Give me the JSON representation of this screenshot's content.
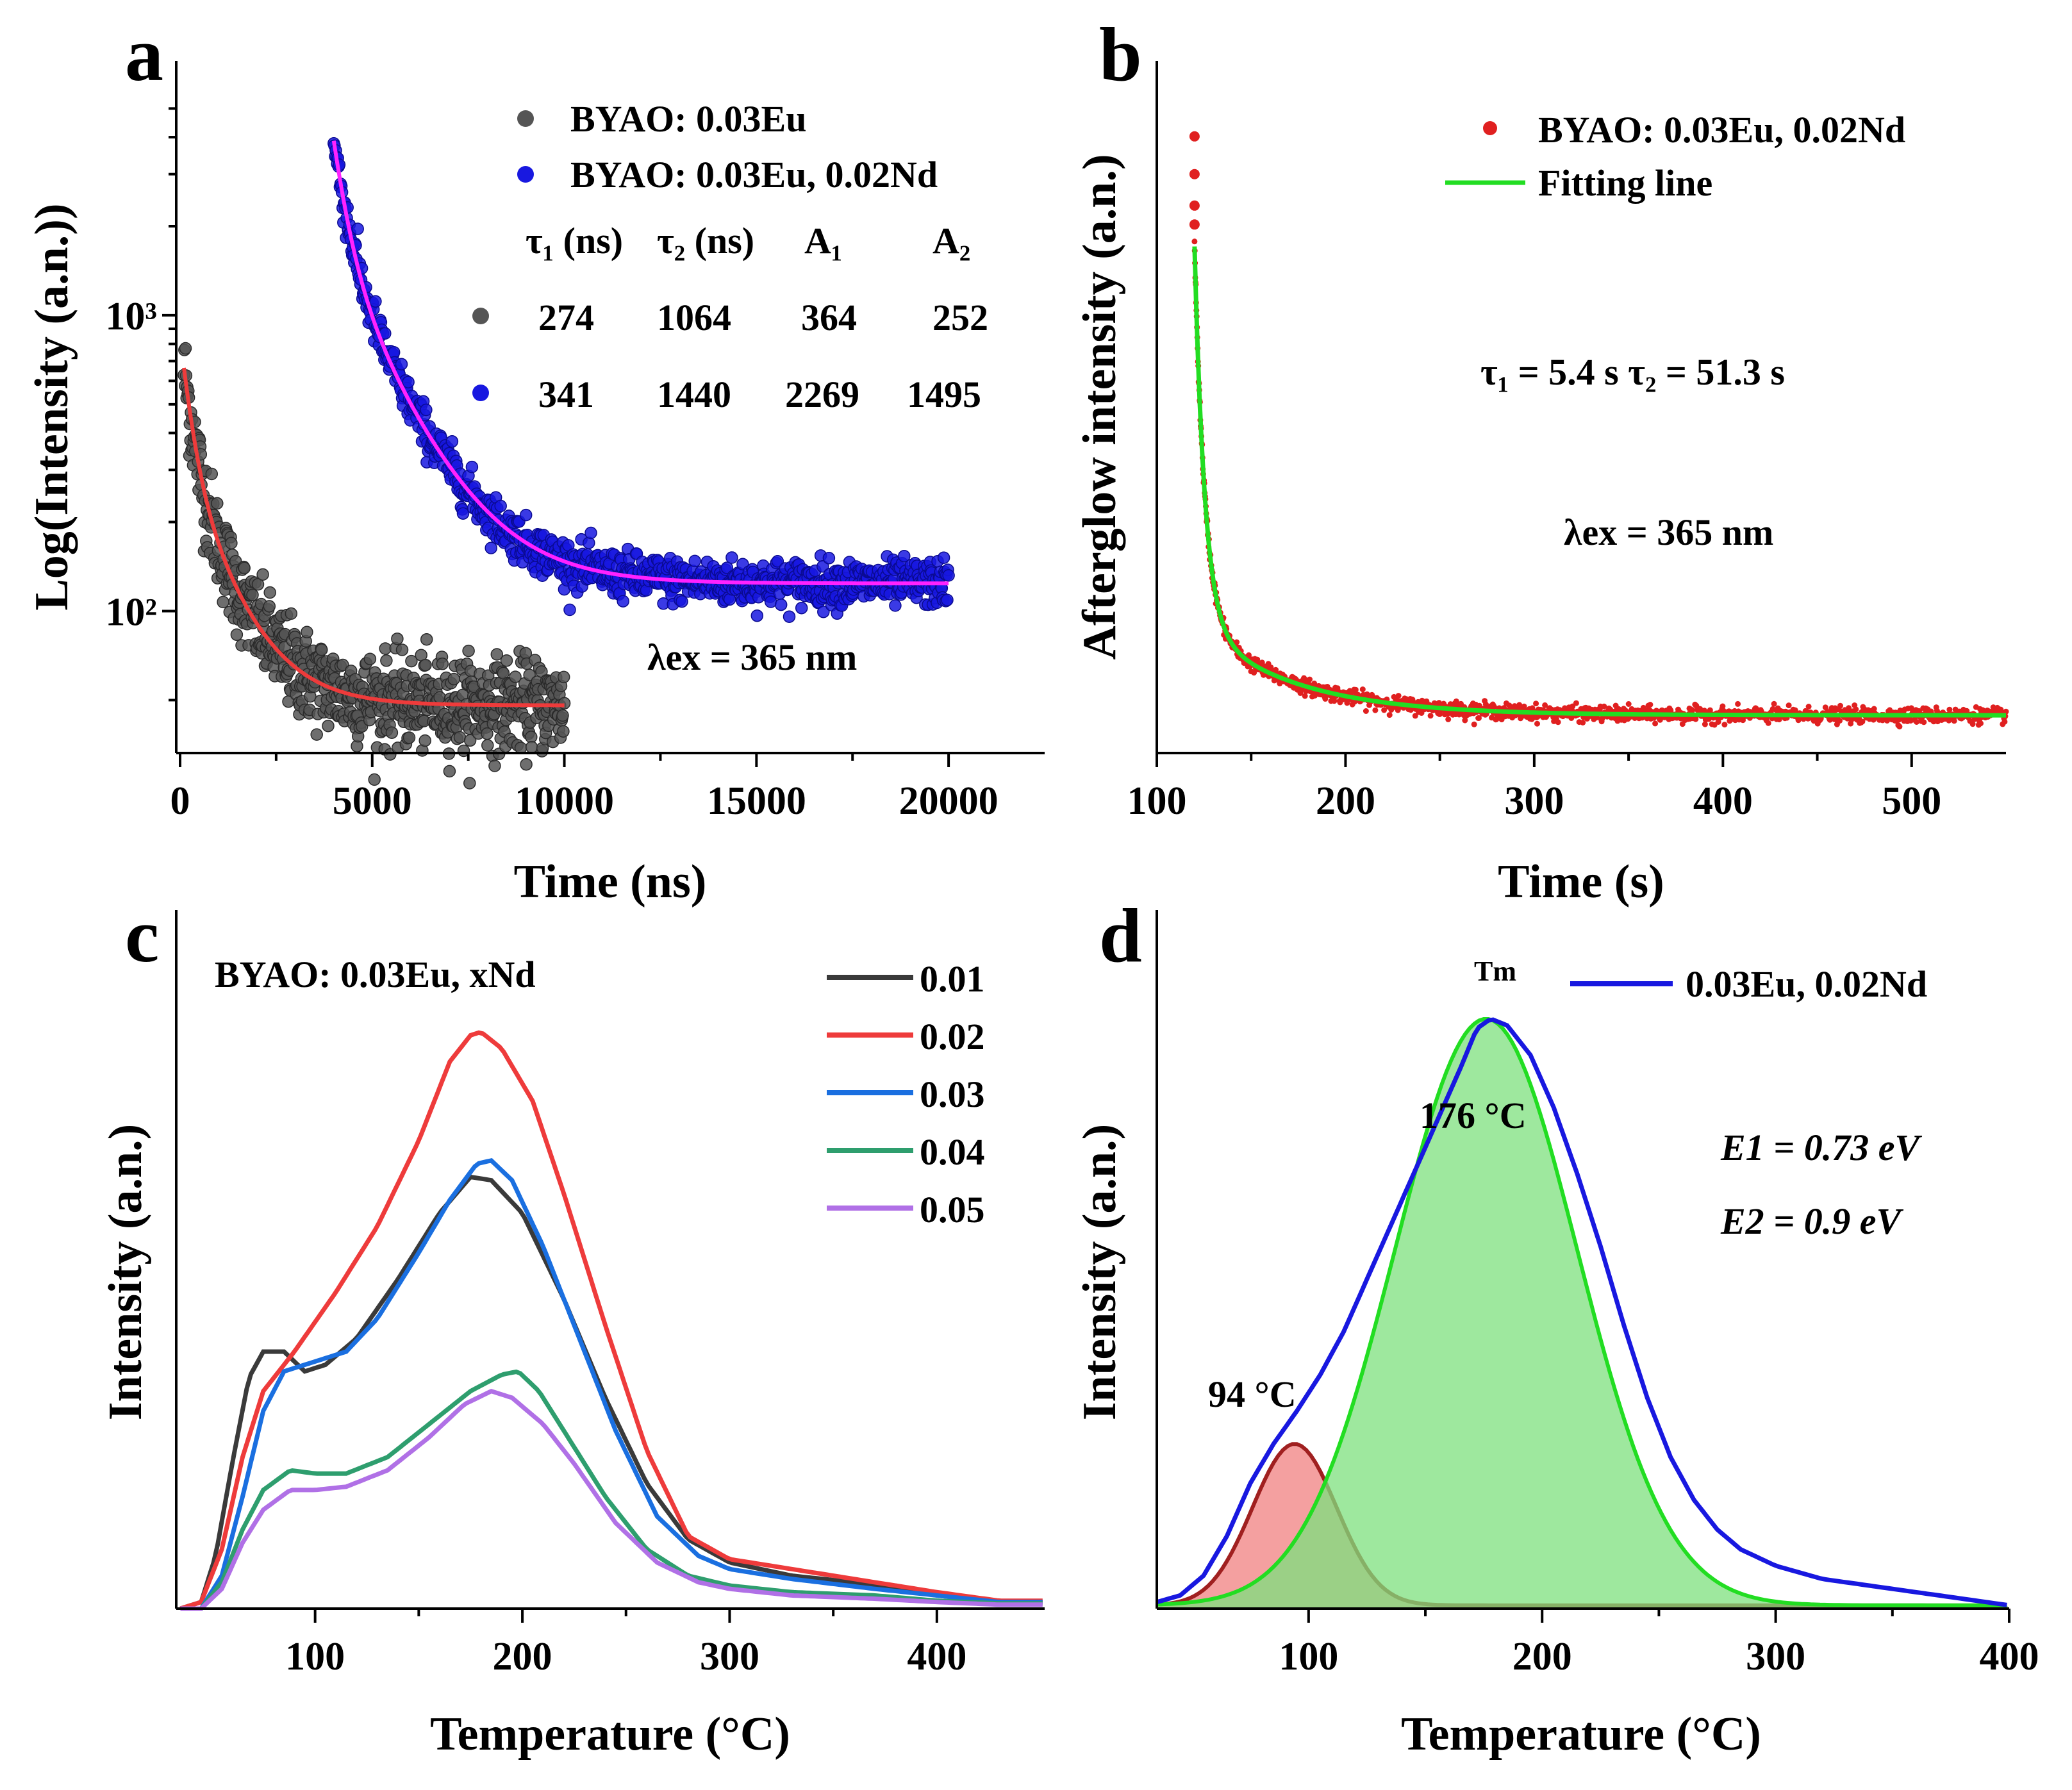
{
  "panels": {
    "a": {
      "letter": "a",
      "legend": [
        {
          "label": "BYAO: 0.03Eu",
          "color": "#555555"
        },
        {
          "label": "BYAO: 0.03Eu, 0.02Nd",
          "color": "#1818e0"
        }
      ],
      "table_header": [
        "τ₁ (ns)",
        "τ₂ (ns)",
        "A₁",
        "A₂"
      ],
      "table_rows": [
        {
          "color": "#555555",
          "cells": [
            "274",
            "1064",
            "364",
            "252"
          ]
        },
        {
          "color": "#1818e0",
          "cells": [
            "341",
            "1440",
            "2269",
            "1495"
          ]
        }
      ],
      "annotation": "λex = 365 nm"
    },
    "b": {
      "letter": "b",
      "legend": [
        {
          "label": "BYAO: 0.03Eu, 0.02Nd",
          "color": "#e02020"
        },
        {
          "label": "Fitting line",
          "color": "#22dd22"
        }
      ],
      "tau_text": "τ₁ = 5.4 s     τ₂ = 51.3 s",
      "annotation": "λex = 365 nm"
    },
    "c": {
      "letter": "c",
      "inset_label": "BYAO: 0.03Eu, xNd"
    },
    "d": {
      "letter": "d",
      "legend": "0.03Eu, 0.02Nd",
      "peak_tm": "Tm",
      "peak_1": "94 °C",
      "peak_2": "176 °C",
      "e1": "E1 = 0.73 eV",
      "e2": "E2 = 0.9 eV"
    }
  },
  "chart_data": [
    {
      "panel": "a",
      "type": "scatter",
      "title": "",
      "xlabel": "Time (ns)",
      "ylabel": "Log(Intensity (a.n.))",
      "xlim": [
        -100,
        22500
      ],
      "ylim_log10": [
        1.52,
        3.86
      ],
      "x_ticks": [
        0,
        5000,
        10000,
        15000,
        20000
      ],
      "y_ticks": [
        {
          "value": 100,
          "label": "10²"
        },
        {
          "value": 1000,
          "label": "10³"
        }
      ],
      "series": [
        {
          "name": "BYAO: 0.03Eu",
          "color": "#555555",
          "x_start": 100,
          "x_end": 10000,
          "baseline": 48,
          "A1": 364,
          "tau1": 274,
          "A2": 252,
          "tau2": 1064,
          "scatter_fraction": 0.18
        },
        {
          "name": "BYAO: 0.03Eu, 0.02Nd",
          "color": "#1818e0",
          "x_start": 4000,
          "x_end": 20000,
          "baseline": 124,
          "A1": 2269,
          "tau1": 341,
          "A2": 1495,
          "tau2": 1440,
          "scatter_fraction": 0.09
        }
      ],
      "fits": [
        {
          "series": "BYAO: 0.03Eu",
          "color": "#ee3b3b"
        },
        {
          "series": "BYAO: 0.03Eu, 0.02Nd",
          "color": "#ff22ff"
        }
      ]
    },
    {
      "panel": "b",
      "type": "scatter",
      "title": "",
      "xlabel": "Time (s)",
      "ylabel": "Afterglow intensity (a.n.)",
      "xlim": [
        100,
        550
      ],
      "ylim": [
        -0.05,
        1.05
      ],
      "x_ticks": [
        100,
        200,
        300,
        400,
        500
      ],
      "series": [
        {
          "name": "BYAO: 0.03Eu, 0.02Nd",
          "color": "#e02020",
          "x_start": 120,
          "x_end": 550,
          "initial_outliers": [
            [
              120,
              0.93
            ],
            [
              120,
              0.87
            ],
            [
              120,
              0.82
            ],
            [
              120,
              0.79
            ]
          ]
        }
      ],
      "fit": {
        "name": "Fitting line",
        "color": "#22dd22",
        "x_start": 120,
        "baseline": 0.01,
        "A1": 0.6,
        "tau1": 5.4,
        "A2": 0.145,
        "tau2": 51.3
      }
    },
    {
      "panel": "c",
      "type": "line",
      "title": "",
      "xlabel": "Temperature (°C)",
      "ylabel": "Intensity (a.n.)",
      "xlim": [
        33,
        452
      ],
      "ylim": [
        0,
        1.06
      ],
      "x_ticks": [
        100,
        200,
        300,
        400
      ],
      "series": [
        {
          "name": "0.01",
          "color": "#3a3a3a",
          "points": [
            [
              35,
              0.0
            ],
            [
              45,
              0.01
            ],
            [
              52,
              0.08
            ],
            [
              60,
              0.22
            ],
            [
              68,
              0.35
            ],
            [
              75,
              0.39
            ],
            [
              85,
              0.39
            ],
            [
              95,
              0.36
            ],
            [
              105,
              0.37
            ],
            [
              120,
              0.41
            ],
            [
              140,
              0.5
            ],
            [
              160,
              0.6
            ],
            [
              175,
              0.655
            ],
            [
              185,
              0.65
            ],
            [
              200,
              0.6
            ],
            [
              220,
              0.47
            ],
            [
              240,
              0.32
            ],
            [
              260,
              0.19
            ],
            [
              280,
              0.105
            ],
            [
              300,
              0.07
            ],
            [
              330,
              0.05
            ],
            [
              360,
              0.04
            ],
            [
              400,
              0.02
            ],
            [
              430,
              0.01
            ],
            [
              452,
              0.01
            ]
          ]
        },
        {
          "name": "0.02",
          "color": "#ee3b3b",
          "points": [
            [
              35,
              0.0
            ],
            [
              45,
              0.01
            ],
            [
              55,
              0.09
            ],
            [
              65,
              0.23
            ],
            [
              75,
              0.33
            ],
            [
              90,
              0.39
            ],
            [
              110,
              0.48
            ],
            [
              130,
              0.58
            ],
            [
              150,
              0.71
            ],
            [
              165,
              0.83
            ],
            [
              175,
              0.87
            ],
            [
              180,
              0.875
            ],
            [
              190,
              0.85
            ],
            [
              205,
              0.77
            ],
            [
              220,
              0.63
            ],
            [
              240,
              0.43
            ],
            [
              260,
              0.24
            ],
            [
              280,
              0.11
            ],
            [
              300,
              0.075
            ],
            [
              330,
              0.06
            ],
            [
              360,
              0.045
            ],
            [
              400,
              0.025
            ],
            [
              430,
              0.012
            ],
            [
              452,
              0.012
            ]
          ]
        },
        {
          "name": "0.03",
          "color": "#1a6fe0",
          "points": [
            [
              35,
              0.0
            ],
            [
              45,
              0.0
            ],
            [
              55,
              0.05
            ],
            [
              65,
              0.17
            ],
            [
              75,
              0.3
            ],
            [
              85,
              0.36
            ],
            [
              100,
              0.375
            ],
            [
              115,
              0.39
            ],
            [
              130,
              0.44
            ],
            [
              150,
              0.54
            ],
            [
              165,
              0.62
            ],
            [
              178,
              0.675
            ],
            [
              185,
              0.68
            ],
            [
              195,
              0.65
            ],
            [
              210,
              0.55
            ],
            [
              225,
              0.43
            ],
            [
              245,
              0.27
            ],
            [
              265,
              0.14
            ],
            [
              285,
              0.08
            ],
            [
              300,
              0.06
            ],
            [
              330,
              0.045
            ],
            [
              370,
              0.03
            ],
            [
              400,
              0.02
            ],
            [
              430,
              0.01
            ],
            [
              452,
              0.01
            ]
          ]
        },
        {
          "name": "0.04",
          "color": "#2e9e6e",
          "points": [
            [
              35,
              0.0
            ],
            [
              45,
              0.0
            ],
            [
              55,
              0.04
            ],
            [
              65,
              0.12
            ],
            [
              75,
              0.18
            ],
            [
              88,
              0.21
            ],
            [
              100,
              0.205
            ],
            [
              115,
              0.205
            ],
            [
              135,
              0.23
            ],
            [
              155,
              0.28
            ],
            [
              175,
              0.33
            ],
            [
              190,
              0.355
            ],
            [
              198,
              0.36
            ],
            [
              208,
              0.33
            ],
            [
              220,
              0.27
            ],
            [
              240,
              0.17
            ],
            [
              260,
              0.09
            ],
            [
              280,
              0.05
            ],
            [
              300,
              0.035
            ],
            [
              330,
              0.025
            ],
            [
              370,
              0.02
            ],
            [
              400,
              0.012
            ],
            [
              430,
              0.008
            ],
            [
              452,
              0.008
            ]
          ]
        },
        {
          "name": "0.05",
          "color": "#b070e6",
          "points": [
            [
              35,
              0.0
            ],
            [
              45,
              0.0
            ],
            [
              55,
              0.03
            ],
            [
              65,
              0.1
            ],
            [
              75,
              0.15
            ],
            [
              88,
              0.18
            ],
            [
              100,
              0.18
            ],
            [
              115,
              0.185
            ],
            [
              135,
              0.21
            ],
            [
              155,
              0.26
            ],
            [
              172,
              0.31
            ],
            [
              185,
              0.33
            ],
            [
              195,
              0.32
            ],
            [
              210,
              0.28
            ],
            [
              225,
              0.22
            ],
            [
              245,
              0.13
            ],
            [
              265,
              0.07
            ],
            [
              285,
              0.04
            ],
            [
              300,
              0.03
            ],
            [
              330,
              0.02
            ],
            [
              370,
              0.015
            ],
            [
              400,
              0.01
            ],
            [
              430,
              0.006
            ],
            [
              452,
              0.006
            ]
          ]
        }
      ]
    },
    {
      "panel": "d",
      "type": "area",
      "title": "",
      "xlabel": "Temperature (°C)",
      "ylabel": "Intensity (a.n.)",
      "xlim": [
        35,
        400
      ],
      "ylim": [
        0,
        1.06
      ],
      "x_ticks": [
        100,
        200,
        300,
        400
      ],
      "series": [
        {
          "name": "0.03Eu, 0.02Nd",
          "color": "#1818e0",
          "points": [
            [
              35,
              0.01
            ],
            [
              45,
              0.02
            ],
            [
              55,
              0.05
            ],
            [
              65,
              0.11
            ],
            [
              75,
              0.19
            ],
            [
              85,
              0.25
            ],
            [
              95,
              0.3
            ],
            [
              105,
              0.355
            ],
            [
              115,
              0.42
            ],
            [
              125,
              0.5
            ],
            [
              135,
              0.58
            ],
            [
              145,
              0.66
            ],
            [
              155,
              0.74
            ],
            [
              165,
              0.82
            ],
            [
              172,
              0.88
            ],
            [
              178,
              0.895
            ],
            [
              185,
              0.885
            ],
            [
              195,
              0.84
            ],
            [
              205,
              0.76
            ],
            [
              215,
              0.66
            ],
            [
              225,
              0.55
            ],
            [
              235,
              0.43
            ],
            [
              245,
              0.32
            ],
            [
              255,
              0.23
            ],
            [
              265,
              0.165
            ],
            [
              275,
              0.12
            ],
            [
              285,
              0.09
            ],
            [
              300,
              0.065
            ],
            [
              320,
              0.045
            ],
            [
              340,
              0.035
            ],
            [
              360,
              0.025
            ],
            [
              380,
              0.015
            ],
            [
              400,
              0.005
            ]
          ]
        }
      ],
      "gaussian_components": [
        {
          "peak_c": 94,
          "amplitude": 0.245,
          "sigma": 18,
          "fill": "#f08080",
          "stroke": "#a02020",
          "baseline": 0.005
        },
        {
          "peak_c": 176,
          "amplitude": 0.89,
          "sigma": 39,
          "fill": "#7ee07e",
          "stroke": "#22dd22",
          "baseline": 0.005
        }
      ]
    }
  ]
}
